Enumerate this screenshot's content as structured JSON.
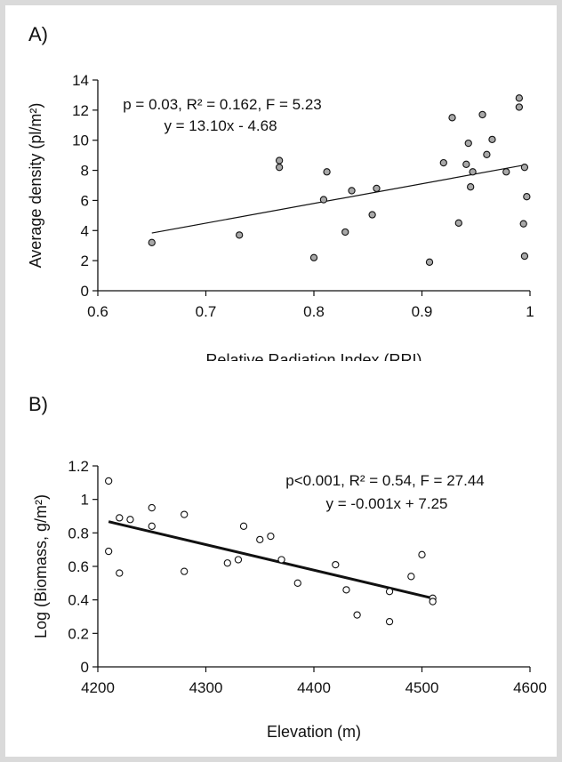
{
  "chart_data": [
    {
      "panel_label": "A)",
      "type": "scatter",
      "title": "",
      "xlabel": "Relative Radiation Index (RRI)",
      "ylabel": "Average density (pl/m²)",
      "xlim": [
        0.6,
        1.0
      ],
      "ylim": [
        0,
        14
      ],
      "xticks": [
        "0.6",
        "0.7",
        "0.8",
        "0.9",
        "1"
      ],
      "xtick_values": [
        0.6,
        0.7,
        0.8,
        0.9,
        1.0
      ],
      "yticks": [
        "0",
        "2",
        "4",
        "6",
        "8",
        "10",
        "12",
        "14"
      ],
      "ytick_values": [
        0,
        2,
        4,
        6,
        8,
        10,
        12,
        14
      ],
      "grid": false,
      "marker_color": "#a8a8a8",
      "annotation_line1": "p = 0.03, R² = 0.162, F = 5.23",
      "annotation_line2": "y = 13.10x - 4.68",
      "fit": {
        "slope": 13.1,
        "intercept": -4.68,
        "x_range": [
          0.65,
          0.995
        ]
      },
      "series": [
        {
          "points": [
            [
              0.65,
              3.2
            ],
            [
              0.731,
              3.7
            ],
            [
              0.768,
              8.65
            ],
            [
              0.768,
              8.2
            ],
            [
              0.8,
              2.2
            ],
            [
              0.809,
              6.05
            ],
            [
              0.812,
              7.9
            ],
            [
              0.829,
              3.9
            ],
            [
              0.835,
              6.65
            ],
            [
              0.854,
              5.05
            ],
            [
              0.858,
              6.8
            ],
            [
              0.907,
              1.9
            ],
            [
              0.92,
              8.5
            ],
            [
              0.928,
              11.5
            ],
            [
              0.934,
              4.5
            ],
            [
              0.941,
              8.4
            ],
            [
              0.943,
              9.8
            ],
            [
              0.945,
              6.9
            ],
            [
              0.947,
              7.9
            ],
            [
              0.956,
              11.7
            ],
            [
              0.96,
              9.05
            ],
            [
              0.965,
              10.05
            ],
            [
              0.978,
              7.9
            ],
            [
              0.99,
              12.8
            ],
            [
              0.99,
              12.2
            ],
            [
              0.995,
              8.2
            ],
            [
              0.994,
              4.45
            ],
            [
              0.997,
              6.25
            ],
            [
              0.995,
              2.3
            ]
          ]
        }
      ]
    },
    {
      "panel_label": "B)",
      "type": "scatter",
      "title": "",
      "xlabel": "Elevation (m)",
      "ylabel": "Log (Biomass, g/m²)",
      "xlim": [
        4200,
        4600
      ],
      "ylim": [
        0,
        1.2
      ],
      "xticks": [
        "4200",
        "4300",
        "4400",
        "4500",
        "4600"
      ],
      "xtick_values": [
        4200,
        4300,
        4400,
        4500,
        4600
      ],
      "yticks": [
        "0",
        "0.2",
        "0.4",
        "0.6",
        "0.8",
        "1",
        "1.2"
      ],
      "ytick_values": [
        0,
        0.2,
        0.4,
        0.6,
        0.8,
        1.0,
        1.2
      ],
      "grid": false,
      "marker_color": "#ffffff",
      "annotation_line1": "p<0.001, R² = 0.54, F = 27.44",
      "annotation_line2": "y = -0.001x + 7.25",
      "fit": {
        "start": [
          4210,
          0.867
        ],
        "end": [
          4510,
          0.41
        ]
      },
      "series": [
        {
          "points": [
            [
              4210,
              1.11
            ],
            [
              4210,
              0.69
            ],
            [
              4220,
              0.89
            ],
            [
              4220,
              0.56
            ],
            [
              4230,
              0.88
            ],
            [
              4250,
              0.95
            ],
            [
              4250,
              0.84
            ],
            [
              4280,
              0.91
            ],
            [
              4280,
              0.57
            ],
            [
              4320,
              0.62
            ],
            [
              4330,
              0.64
            ],
            [
              4335,
              0.84
            ],
            [
              4350,
              0.76
            ],
            [
              4360,
              0.78
            ],
            [
              4370,
              0.64
            ],
            [
              4385,
              0.5
            ],
            [
              4420,
              0.61
            ],
            [
              4430,
              0.46
            ],
            [
              4440,
              0.31
            ],
            [
              4470,
              0.45
            ],
            [
              4470,
              0.27
            ],
            [
              4490,
              0.54
            ],
            [
              4500,
              0.67
            ],
            [
              4510,
              0.41
            ],
            [
              4510,
              0.39
            ]
          ]
        }
      ]
    }
  ]
}
